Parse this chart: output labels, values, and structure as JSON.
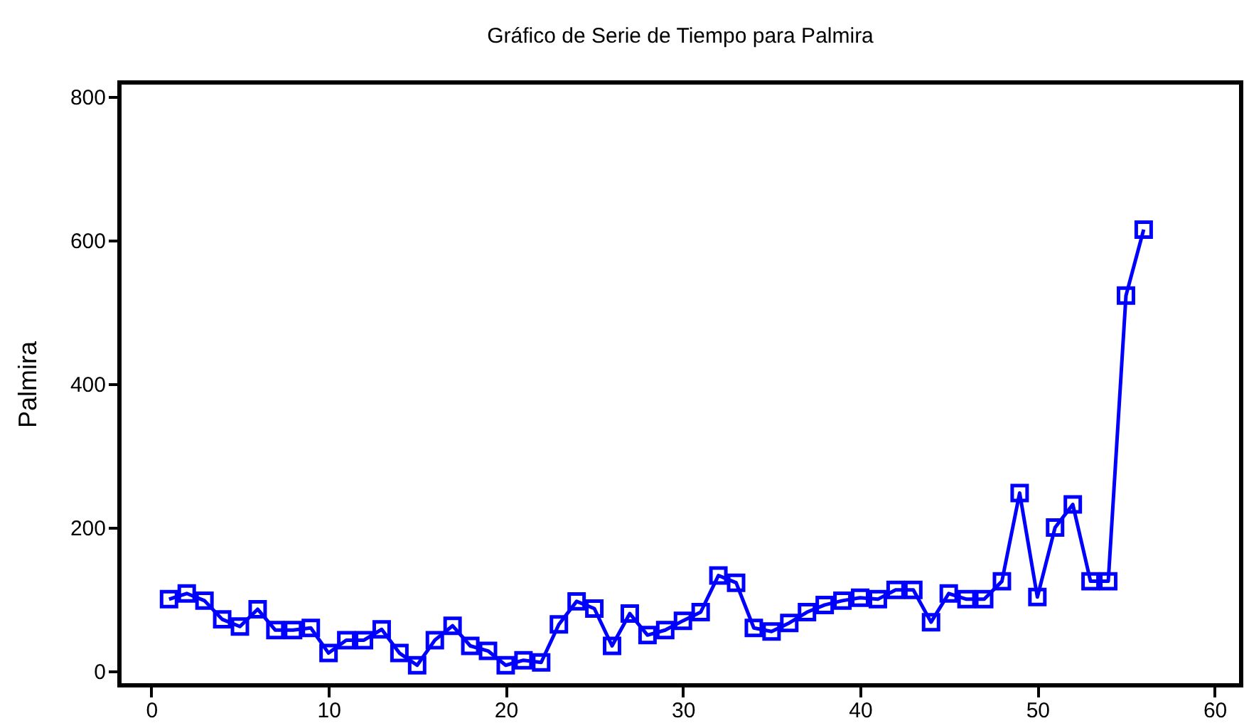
{
  "chart_data": {
    "type": "line",
    "title": "Gráfico de Serie de Tiempo para Palmira",
    "ylabel": "Palmira",
    "x": [
      1,
      2,
      3,
      4,
      5,
      6,
      7,
      8,
      9,
      10,
      11,
      12,
      13,
      14,
      15,
      16,
      17,
      18,
      19,
      20,
      21,
      22,
      23,
      24,
      25,
      26,
      27,
      28,
      29,
      30,
      31,
      32,
      33,
      34,
      35,
      36,
      37,
      38,
      39,
      40,
      41,
      42,
      43,
      44,
      45,
      46,
      47,
      48,
      49,
      50,
      51,
      52,
      53,
      54,
      55,
      56
    ],
    "series": [
      {
        "color": "#0000ff",
        "values": [
          100,
          108,
          98,
          72,
          62,
          86,
          57,
          57,
          60,
          25,
          43,
          43,
          58,
          25,
          8,
          43,
          63,
          35,
          28,
          8,
          15,
          12,
          65,
          97,
          87,
          35,
          80,
          50,
          57,
          70,
          82,
          133,
          123,
          60,
          55,
          67,
          82,
          92,
          98,
          102,
          100,
          113,
          113,
          68,
          108,
          100,
          100,
          125,
          248,
          103,
          200,
          232,
          125,
          125,
          523,
          615
        ]
      }
    ],
    "xlim": [
      -1.8,
      61.5
    ],
    "ylim": [
      -20,
      820
    ],
    "xticks": [
      0,
      10,
      20,
      30,
      40,
      50,
      60
    ],
    "yticks": [
      0,
      200,
      400,
      600,
      800
    ],
    "marker": "square",
    "line_style": "solid",
    "grid": false,
    "legend": false
  }
}
